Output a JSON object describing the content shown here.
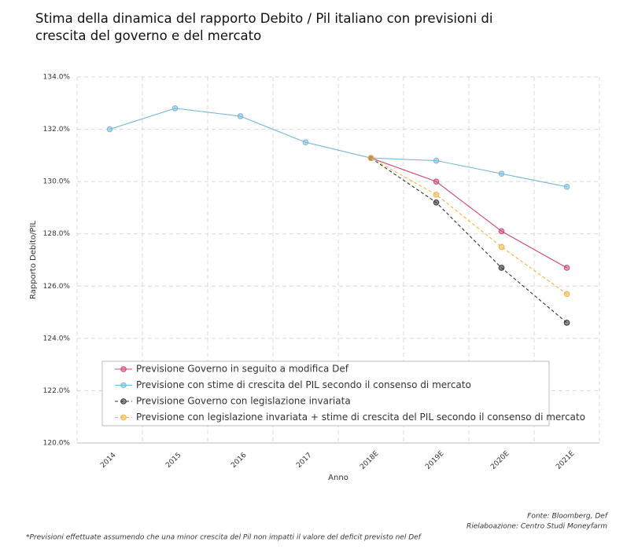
{
  "chart_data": {
    "type": "line",
    "title": [
      "Stima della dinamica del rapporto Debito / Pil italiano con previsioni di",
      "crescita del governo e del mercato"
    ],
    "ylabel": "Rapporto Debito/PIL",
    "xlabel": "Anno",
    "categories": [
      "2014",
      "2015",
      "2016",
      "2017",
      "2018E",
      "2019E",
      "2020E",
      "2021E"
    ],
    "series": [
      {
        "name": "Previsione Governo in seguito a modifica Def",
        "color": "#c8487a",
        "style": "solid",
        "values": [
          null,
          null,
          null,
          null,
          130.9,
          130.0,
          128.1,
          126.7
        ]
      },
      {
        "name": "Previsione con stime di crescita del PIL secondo il consenso di mercato",
        "color": "#7ab8d8",
        "style": "solid",
        "values": [
          132.0,
          132.8,
          132.5,
          131.5,
          130.9,
          130.8,
          130.3,
          129.8
        ]
      },
      {
        "name": "Previsione Governo con legislazione invariata",
        "color": "#333333",
        "style": "dashed",
        "values": [
          null,
          null,
          null,
          null,
          130.9,
          129.2,
          126.7,
          124.6
        ]
      },
      {
        "name": "Previsione con legislazione invariata + stime di crescita del PIL secondo il consenso di mercato",
        "color": "#f0b445",
        "style": "dashed",
        "values": [
          null,
          null,
          null,
          null,
          130.9,
          129.5,
          127.5,
          125.7
        ]
      }
    ],
    "ylim": [
      120,
      134
    ],
    "yticks": [
      {
        "value": 120,
        "label": "120.0%"
      },
      {
        "value": 122,
        "label": "122.0%"
      },
      {
        "value": 124,
        "label": "124.0%"
      },
      {
        "value": 126,
        "label": "126.0%"
      },
      {
        "value": 128,
        "label": "128.0%"
      },
      {
        "value": 130,
        "label": "130.0%"
      },
      {
        "value": 132,
        "label": "132.0%"
      },
      {
        "value": 134,
        "label": "134.0%"
      }
    ],
    "grid": true,
    "legend": "bottom-left",
    "source": [
      "Fonte: Bloomberg, Def",
      "Rielaboazione: Centro Studi Moneyfarm"
    ],
    "note": "*Previsioni effettuate assumendo che una minor crescita del Pil non impatti il valore del deficit previsto nel Def"
  }
}
